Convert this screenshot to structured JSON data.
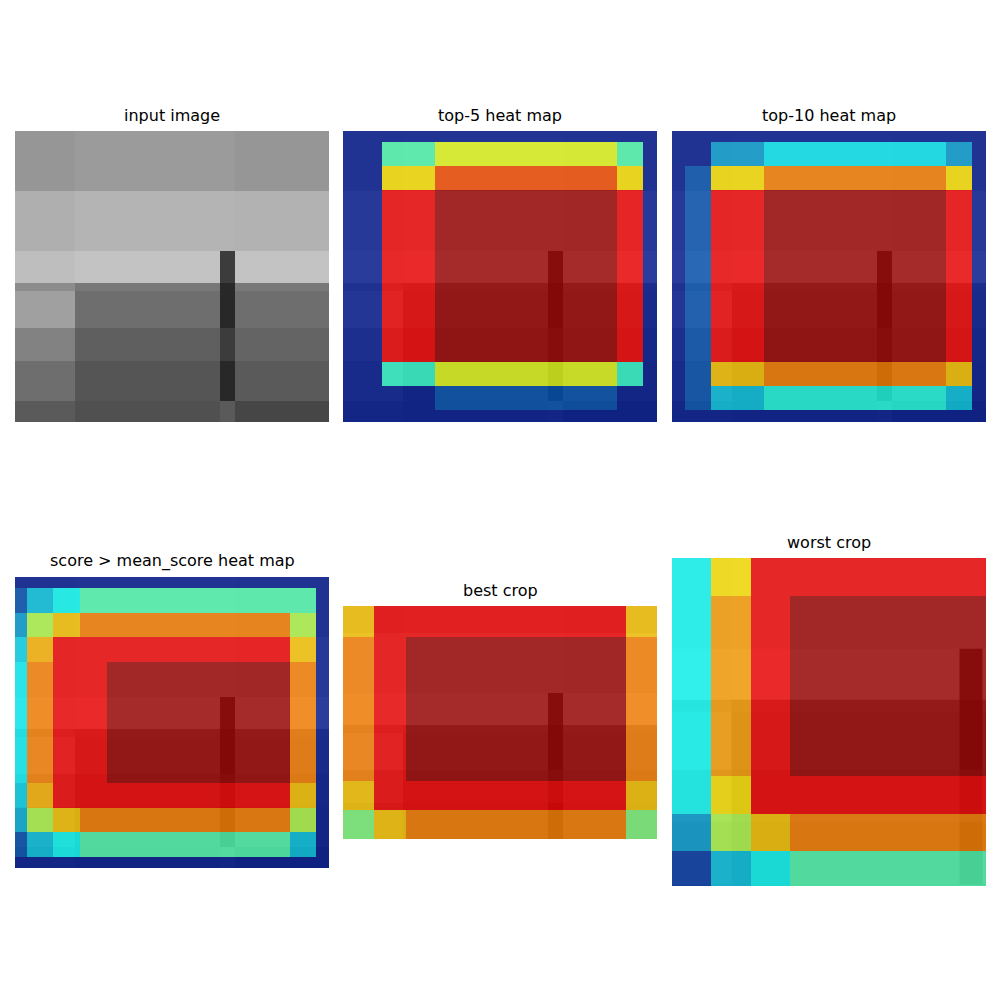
{
  "chart_data": [
    {
      "type": "image",
      "title": "input image",
      "tick_labels": false,
      "xlim": [
        0,
        314
      ],
      "ylim": [
        0,
        291
      ],
      "cells": {
        "x_edges": [
          0,
          60,
          205,
          220,
          314
        ],
        "y_edges": [
          0,
          60,
          120,
          152,
          160,
          197,
          230,
          270,
          291
        ],
        "zlim": [
          0,
          255
        ],
        "z": [
          [
            150,
            155,
            155,
            150
          ],
          [
            175,
            180,
            180,
            178
          ],
          [
            190,
            195,
            60,
            195
          ],
          [
            140,
            120,
            40,
            120
          ],
          [
            160,
            110,
            40,
            110
          ],
          [
            130,
            95,
            60,
            100
          ],
          [
            110,
            85,
            40,
            90
          ],
          [
            90,
            80,
            90,
            70
          ]
        ]
      }
    },
    {
      "type": "heatmap",
      "title": "top-5 heat map",
      "tick_labels": false,
      "xlim": [
        0,
        314
      ],
      "ylim": [
        0,
        291
      ],
      "cells": {
        "x_edges": [
          0,
          39,
          92,
          274,
          300,
          314
        ],
        "y_edges": [
          0,
          11,
          35,
          59,
          231,
          255,
          279,
          291
        ],
        "zlim": [
          0,
          1
        ],
        "z": [
          [
            0.05,
            0.05,
            0.05,
            0.05,
            0.05
          ],
          [
            0.05,
            0.45,
            0.6,
            0.45,
            0.05
          ],
          [
            0.05,
            0.65,
            0.8,
            0.65,
            0.05
          ],
          [
            0.05,
            0.88,
            0.97,
            0.88,
            0.05
          ],
          [
            0.05,
            0.42,
            0.6,
            0.42,
            0.05
          ],
          [
            0.05,
            0.05,
            0.15,
            0.05,
            0.05
          ],
          [
            0.05,
            0.05,
            0.05,
            0.05,
            0.05
          ]
        ]
      }
    },
    {
      "type": "heatmap",
      "title": "top-10 heat map",
      "tick_labels": false,
      "xlim": [
        0,
        314
      ],
      "ylim": [
        0,
        291
      ],
      "cells": {
        "x_edges": [
          0,
          13,
          39,
          92,
          274,
          300,
          314
        ],
        "y_edges": [
          0,
          11,
          35,
          59,
          231,
          255,
          279,
          291
        ],
        "zlim": [
          0,
          1
        ],
        "z": [
          [
            0.05,
            0.05,
            0.05,
            0.05,
            0.05,
            0.05
          ],
          [
            0.05,
            0.05,
            0.25,
            0.35,
            0.25,
            0.05
          ],
          [
            0.05,
            0.15,
            0.65,
            0.75,
            0.65,
            0.05
          ],
          [
            0.05,
            0.15,
            0.88,
            0.97,
            0.88,
            0.05
          ],
          [
            0.05,
            0.15,
            0.68,
            0.75,
            0.68,
            0.05
          ],
          [
            0.05,
            0.15,
            0.3,
            0.4,
            0.3,
            0.05
          ],
          [
            0.05,
            0.05,
            0.05,
            0.05,
            0.05,
            0.05
          ]
        ]
      }
    },
    {
      "type": "heatmap",
      "title": "score > mean_score heat map",
      "tick_labels": false,
      "xlim": [
        0,
        314
      ],
      "ylim": [
        0,
        291
      ],
      "cells": {
        "x_edges": [
          0,
          12,
          38,
          65,
          92,
          275,
          301,
          314
        ],
        "y_edges": [
          0,
          11,
          36,
          60,
          85,
          206,
          231,
          255,
          280,
          291
        ],
        "zlim": [
          0,
          1
        ],
        "z": [
          [
            0.05,
            0.05,
            0.05,
            0.05,
            0.05,
            0.05,
            0.05
          ],
          [
            0.15,
            0.3,
            0.38,
            0.45,
            0.45,
            0.45,
            0.05
          ],
          [
            0.25,
            0.55,
            0.68,
            0.75,
            0.75,
            0.55,
            0.05
          ],
          [
            0.32,
            0.7,
            0.88,
            0.88,
            0.88,
            0.68,
            0.05
          ],
          [
            0.36,
            0.75,
            0.88,
            0.88,
            0.97,
            0.75,
            0.05
          ],
          [
            0.32,
            0.7,
            0.88,
            0.88,
            0.88,
            0.68,
            0.05
          ],
          [
            0.28,
            0.55,
            0.68,
            0.75,
            0.75,
            0.55,
            0.05
          ],
          [
            0.15,
            0.3,
            0.38,
            0.45,
            0.45,
            0.3,
            0.05
          ],
          [
            0.05,
            0.05,
            0.05,
            0.05,
            0.05,
            0.05,
            0.05
          ]
        ]
      }
    },
    {
      "type": "heatmap",
      "title": "best crop",
      "tick_labels": false,
      "xlim": [
        0,
        314
      ],
      "ylim": [
        33,
        266
      ],
      "cells": {
        "x_edges": [
          0,
          31,
          63,
          283,
          314
        ],
        "y_edges": [
          33,
          64,
          208,
          237,
          266
        ],
        "zlim": [
          0,
          1
        ],
        "z": [
          [
            0.68,
            0.88,
            0.88,
            0.68
          ],
          [
            0.75,
            0.88,
            0.97,
            0.75
          ],
          [
            0.68,
            0.88,
            0.88,
            0.68
          ],
          [
            0.5,
            0.68,
            0.75,
            0.5
          ]
        ]
      }
    },
    {
      "type": "heatmap",
      "title": "worst crop",
      "tick_labels": false,
      "xlim": [
        22,
        222
      ],
      "ylim": [
        62,
        271
      ],
      "cells": {
        "x_edges": [
          22,
          47,
          72,
          97,
          222
        ],
        "y_edges": [
          62,
          86,
          201,
          225,
          249,
          271
        ],
        "zlim": [
          0,
          1
        ],
        "z": [
          [
            0.38,
            0.65,
            0.88,
            0.88
          ],
          [
            0.38,
            0.72,
            0.88,
            0.97
          ],
          [
            0.38,
            0.65,
            0.88,
            0.88
          ],
          [
            0.25,
            0.55,
            0.68,
            0.75
          ],
          [
            0.12,
            0.3,
            0.38,
            0.45
          ]
        ]
      }
    }
  ]
}
